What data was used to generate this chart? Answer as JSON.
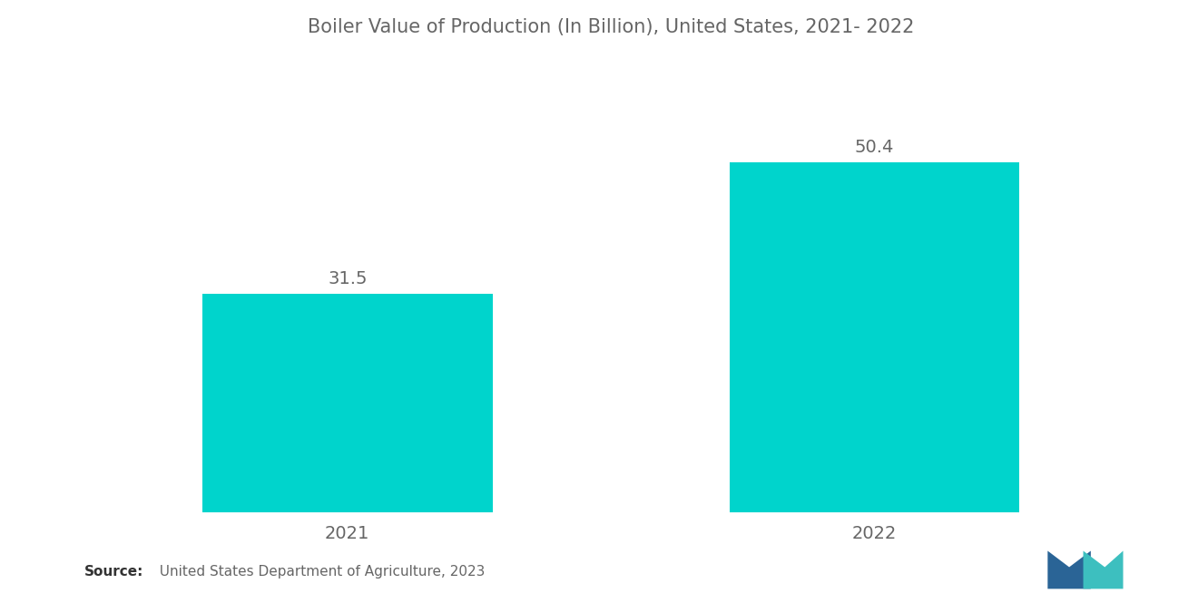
{
  "title": "Boiler Value of Production (In Billion), United States, 2021- 2022",
  "categories": [
    "2021",
    "2022"
  ],
  "values": [
    31.5,
    50.4
  ],
  "bar_color": "#00D4CC",
  "background_color": "#ffffff",
  "title_color": "#666666",
  "label_color": "#666666",
  "tick_color": "#666666",
  "title_fontsize": 15,
  "label_fontsize": 14,
  "tick_fontsize": 14,
  "source_bold": "Source:",
  "source_rest": "  United States Department of Agriculture, 2023",
  "ylim": [
    0,
    65
  ],
  "bar_width": 0.55,
  "xlim": [
    -0.5,
    1.5
  ],
  "x_positions": [
    0,
    1
  ]
}
